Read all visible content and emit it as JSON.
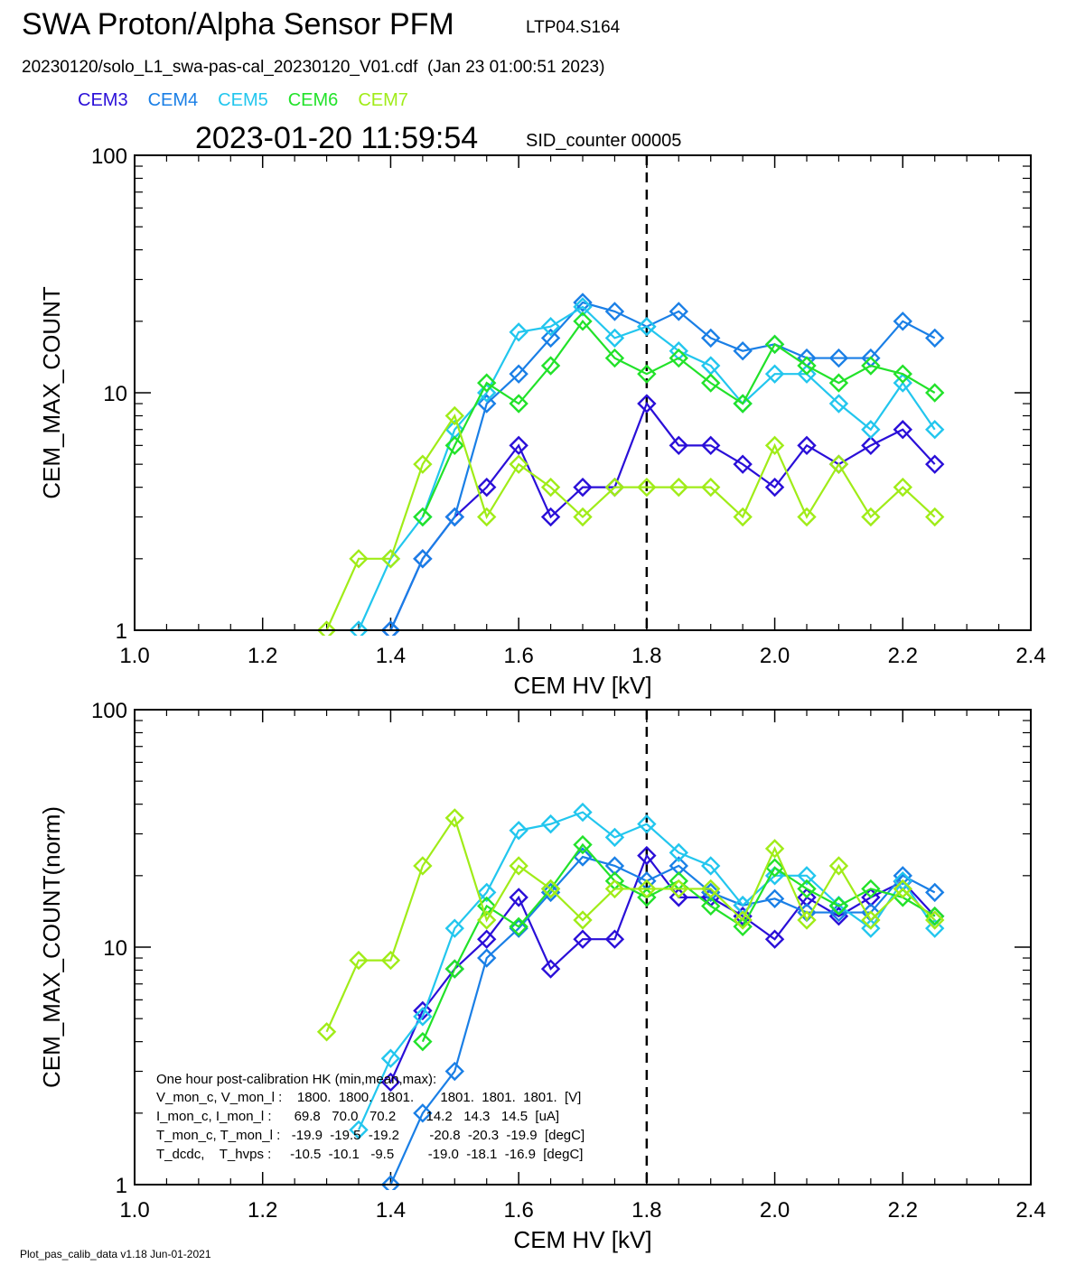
{
  "header": {
    "title": "SWA Proton/Alpha Sensor PFM",
    "title_id": "LTP04.S164",
    "file_line": "20230120/solo_L1_swa-pas-cal_20230120_V01.cdf  (Jan 23 01:00:51 2023)",
    "timestamp": "2023-01-20 11:59:54",
    "sid": "SID_counter 00005"
  },
  "footer": "Plot_pas_calib_data v1.18 Jun-01-2021",
  "legend": [
    {
      "name": "CEM3",
      "color": "#2a0fd8"
    },
    {
      "name": "CEM4",
      "color": "#1a7fe6"
    },
    {
      "name": "CEM5",
      "color": "#22c6ee"
    },
    {
      "name": "CEM6",
      "color": "#22e22a"
    },
    {
      "name": "CEM7",
      "color": "#a0ec18"
    }
  ],
  "hk_box": {
    "lines": [
      "One hour post-calibration HK (min,mean,max):",
      "V_mon_c, V_mon_l :    1800.  1800.  1801.       1801.  1801.  1801.  [V]",
      "I_mon_c, I_mon_l :      69.8   70.0   70.2        14.2   14.3   14.5  [uA]",
      "T_mon_c, T_mon_l :   -19.9  -19.5  -19.2        -20.8  -20.3  -19.9  [degC]",
      "T_dcdc,    T_hvps :     -10.5  -10.1   -9.5         -19.0  -18.1  -16.9  [degC]"
    ]
  },
  "chart_data": [
    {
      "type": "line",
      "xlabel": "CEM HV [kV]",
      "ylabel": "CEM_MAX_COUNT",
      "xlim": [
        1.0,
        2.4
      ],
      "ylim": [
        1,
        100
      ],
      "yscale": "log",
      "xticks": [
        "1.0",
        "1.2",
        "1.4",
        "1.6",
        "1.8",
        "2.0",
        "2.2",
        "2.4"
      ],
      "yticks": [
        "1",
        "10",
        "100"
      ],
      "vline": 1.8,
      "marker": "diamond",
      "series": [
        {
          "name": "CEM3",
          "color": "#2a0fd8",
          "x": [
            1.4,
            1.45,
            1.5,
            1.55,
            1.6,
            1.65,
            1.7,
            1.75,
            1.8,
            1.85,
            1.9,
            1.95,
            2.0,
            2.05,
            2.1,
            2.15,
            2.2,
            2.25
          ],
          "y": [
            1,
            2,
            3,
            4,
            6,
            3,
            4,
            4,
            9,
            6,
            6,
            5,
            4,
            6,
            5,
            6,
            7,
            5
          ]
        },
        {
          "name": "CEM4",
          "color": "#1a7fe6",
          "x": [
            1.4,
            1.45,
            1.5,
            1.55,
            1.6,
            1.65,
            1.7,
            1.75,
            1.8,
            1.85,
            1.9,
            1.95,
            2.0,
            2.05,
            2.1,
            2.15,
            2.2,
            2.25
          ],
          "y": [
            1,
            2,
            3,
            9,
            12,
            17,
            24,
            22,
            19,
            22,
            17,
            15,
            16,
            14,
            14,
            14,
            20,
            17
          ]
        },
        {
          "name": "CEM5",
          "color": "#22c6ee",
          "x": [
            1.35,
            1.4,
            1.45,
            1.5,
            1.55,
            1.6,
            1.65,
            1.7,
            1.75,
            1.8,
            1.85,
            1.9,
            1.95,
            2.0,
            2.05,
            2.1,
            2.15,
            2.2,
            2.25
          ],
          "y": [
            1,
            2,
            3,
            7,
            10,
            18,
            19,
            23,
            17,
            19,
            15,
            13,
            9,
            12,
            12,
            9,
            7,
            11,
            7
          ]
        },
        {
          "name": "CEM6",
          "color": "#22e22a",
          "x": [
            1.45,
            1.5,
            1.55,
            1.6,
            1.65,
            1.7,
            1.75,
            1.8,
            1.85,
            1.9,
            1.95,
            2.0,
            2.05,
            2.1,
            2.15,
            2.2,
            2.25
          ],
          "y": [
            3,
            6,
            11,
            9,
            13,
            20,
            14,
            12,
            14,
            11,
            9,
            16,
            13,
            11,
            13,
            12,
            10
          ]
        },
        {
          "name": "CEM7",
          "color": "#a0ec18",
          "x": [
            1.3,
            1.35,
            1.4,
            1.45,
            1.5,
            1.55,
            1.6,
            1.65,
            1.7,
            1.75,
            1.8,
            1.85,
            1.9,
            1.95,
            2.0,
            2.05,
            2.1,
            2.15,
            2.2,
            2.25
          ],
          "y": [
            1,
            2,
            2,
            5,
            8,
            3,
            5,
            4,
            3,
            4,
            4,
            4,
            4,
            3,
            6,
            3,
            5,
            3,
            4,
            3
          ]
        }
      ]
    },
    {
      "type": "line",
      "xlabel": "CEM HV [kV]",
      "ylabel": "CEM_MAX_COUNT(norm)",
      "xlim": [
        1.0,
        2.4
      ],
      "ylim": [
        1,
        100
      ],
      "yscale": "log",
      "xticks": [
        "1.0",
        "1.2",
        "1.4",
        "1.6",
        "1.8",
        "2.0",
        "2.2",
        "2.4"
      ],
      "yticks": [
        "1",
        "10",
        "100"
      ],
      "vline": 1.8,
      "marker": "diamond",
      "series": [
        {
          "name": "CEM3",
          "color": "#2a0fd8",
          "x": [
            1.4,
            1.45,
            1.5,
            1.55,
            1.6,
            1.65,
            1.7,
            1.75,
            1.8,
            1.85,
            1.9,
            1.95,
            2.0,
            2.05,
            2.1,
            2.15,
            2.2,
            2.25
          ],
          "y": [
            2.7,
            5.4,
            8.1,
            10.8,
            16.2,
            8.1,
            10.8,
            10.8,
            24.3,
            16.2,
            16.2,
            13.5,
            10.8,
            16.2,
            13.5,
            16.2,
            18.9,
            13.5
          ]
        },
        {
          "name": "CEM4",
          "color": "#1a7fe6",
          "x": [
            1.4,
            1.45,
            1.5,
            1.55,
            1.6,
            1.65,
            1.7,
            1.75,
            1.8,
            1.85,
            1.9,
            1.95,
            2.0,
            2.05,
            2.1,
            2.15,
            2.2,
            2.25
          ],
          "y": [
            1,
            2,
            3,
            9,
            12,
            17,
            24,
            22,
            19,
            22,
            17,
            15,
            16,
            14,
            14,
            14,
            20,
            17
          ]
        },
        {
          "name": "CEM5",
          "color": "#22c6ee",
          "x": [
            1.35,
            1.4,
            1.45,
            1.5,
            1.55,
            1.6,
            1.65,
            1.7,
            1.75,
            1.8,
            1.85,
            1.9,
            1.95,
            2.0,
            2.05,
            2.1,
            2.15,
            2.2,
            2.25
          ],
          "y": [
            1.7,
            3.4,
            5.1,
            12,
            17,
            31,
            33,
            37,
            29,
            33,
            25,
            22,
            15,
            20,
            20,
            15,
            12,
            19,
            12
          ]
        },
        {
          "name": "CEM6",
          "color": "#22e22a",
          "x": [
            1.45,
            1.5,
            1.55,
            1.6,
            1.65,
            1.7,
            1.75,
            1.8,
            1.85,
            1.9,
            1.95,
            2.0,
            2.05,
            2.1,
            2.15,
            2.2,
            2.25
          ],
          "y": [
            4,
            8.1,
            14.9,
            12.2,
            17.6,
            27,
            19,
            16.2,
            19,
            14.9,
            12.2,
            21.6,
            17.6,
            14.9,
            17.6,
            16.2,
            13.5
          ]
        },
        {
          "name": "CEM7",
          "color": "#a0ec18",
          "x": [
            1.3,
            1.35,
            1.4,
            1.45,
            1.5,
            1.55,
            1.6,
            1.65,
            1.7,
            1.75,
            1.8,
            1.85,
            1.9,
            1.95,
            2.0,
            2.05,
            2.1,
            2.15,
            2.2,
            2.25
          ],
          "y": [
            4.4,
            8.8,
            8.8,
            22,
            35,
            13,
            22,
            17.6,
            13,
            17.6,
            17.6,
            17.6,
            17.6,
            13,
            26,
            13,
            22,
            13,
            17.6,
            13
          ]
        }
      ]
    }
  ]
}
